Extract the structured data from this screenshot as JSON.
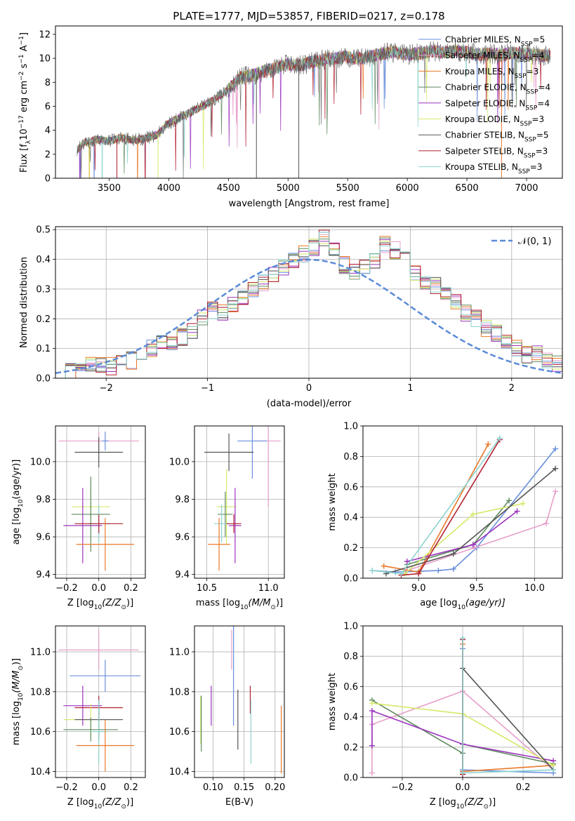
{
  "figure": {
    "title": "PLATE=1777, MJD=53857, FIBERID=0217, z=0.178"
  },
  "colors": {
    "Chabrier MILES": "#6a8fdc",
    "Salpeter MILES": "#e79fc9",
    "Kroupa MILES": "#e8792a",
    "Chabrier ELODIE": "#5f8a5f",
    "Salpeter ELODIE": "#9b34be",
    "Kroupa ELODIE": "#d7e86a",
    "Chabrier STELIB": "#555555",
    "Salpeter STELIB": "#b22030",
    "Kroupa STELIB": "#8dd4cf",
    "normal": "#5b8ad8"
  },
  "chart_data": [
    {
      "type": "line",
      "panel": "spectrum",
      "xlabel": "wavelength [Angstrom, rest frame]",
      "ylabel": "Flux [f",
      "ylabel_sub": "λ",
      "ylabel_rest": "10",
      "ylabel_exp": "−17",
      "ylabel_units": " erg cm",
      "ylabel_exp2": "−2",
      "ylabel_s": " s",
      "ylabel_exp3": "−1",
      "ylabel_a": " A",
      "ylabel_exp4": "−1",
      "ylabel_end": "]",
      "xlim": [
        3050,
        7300
      ],
      "ylim": [
        0,
        12.7
      ],
      "xticks": [
        3500,
        4000,
        4500,
        5000,
        5500,
        6000,
        6500,
        7000
      ],
      "yticks": [
        0,
        2,
        4,
        6,
        8,
        10,
        12
      ],
      "legend_position": "right",
      "legend": [
        {
          "name": "Chabrier MILES",
          "n": "5"
        },
        {
          "name": "Salpeter MILES",
          "n": "4"
        },
        {
          "name": "Kroupa MILES",
          "n": "3"
        },
        {
          "name": "Chabrier ELODIE",
          "n": "4"
        },
        {
          "name": "Salpeter ELODIE",
          "n": "4"
        },
        {
          "name": "Kroupa ELODIE",
          "n": "3"
        },
        {
          "name": "Chabrier STELIB",
          "n": "5"
        },
        {
          "name": "Salpeter STELIB",
          "n": "3"
        },
        {
          "name": "Kroupa STELIB",
          "n": "3"
        }
      ],
      "series_data": {
        "x": [
          3230,
          3300,
          3400,
          3500,
          3600,
          3700,
          3800,
          3900,
          4000,
          4100,
          4200,
          4300,
          4400,
          4500,
          4600,
          4700,
          4800,
          4900,
          5000,
          5100,
          5200,
          5300,
          5400,
          5500,
          5600,
          5700,
          5800,
          5900,
          6000,
          6100,
          6200,
          6300,
          6400,
          6500,
          6600,
          6700,
          6800,
          6900,
          7000,
          7100,
          7200
        ],
        "y": [
          2.4,
          3.0,
          3.2,
          3.1,
          3.4,
          3.2,
          3.3,
          3.6,
          4.6,
          5.1,
          5.6,
          6.1,
          6.7,
          7.4,
          8.4,
          8.6,
          8.9,
          9.2,
          9.5,
          9.4,
          9.7,
          9.9,
          10.0,
          10.1,
          10.0,
          10.2,
          10.4,
          10.5,
          10.3,
          10.4,
          10.6,
          10.5,
          10.6,
          10.5,
          10.3,
          10.4,
          10.3,
          10.5,
          10.4,
          10.2,
          10.3
        ]
      }
    },
    {
      "type": "histogram",
      "panel": "residuals",
      "xlabel": "(data-model)/error",
      "ylabel": "Normed distribution",
      "xlim": [
        -2.5,
        2.5
      ],
      "ylim": [
        0,
        0.51
      ],
      "xticks": [
        -2,
        -1,
        0,
        1,
        2
      ],
      "yticks": [
        0.0,
        0.1,
        0.2,
        0.3,
        0.4,
        0.5
      ],
      "grid": true,
      "legend_position": "top-right",
      "normal_label": "𝒩(0, 1)",
      "bin_width": 0.1,
      "bin_start": -2.5,
      "values": [
        0.02,
        0.02,
        0.03,
        0.05,
        0.04,
        0.04,
        0.05,
        0.06,
        0.09,
        0.1,
        0.12,
        0.12,
        0.14,
        0.16,
        0.2,
        0.23,
        0.22,
        0.25,
        0.27,
        0.3,
        0.32,
        0.35,
        0.37,
        0.4,
        0.42,
        0.44,
        0.47,
        0.43,
        0.38,
        0.36,
        0.37,
        0.4,
        0.45,
        0.43,
        0.4,
        0.35,
        0.32,
        0.31,
        0.28,
        0.26,
        0.22,
        0.2,
        0.17,
        0.15,
        0.12,
        0.1,
        0.08,
        0.08,
        0.06,
        0.05,
        0.05,
        0.04,
        0.03,
        0.03,
        0.04
      ]
    },
    {
      "type": "scatter",
      "panel": "age-vs-Z",
      "xlabel": "Z [log",
      "xlabel_sub": "10",
      "xlabel_rest": "(Z/Z",
      "xlabel_sub2": "⊙",
      "xlabel_end": ")]",
      "ylabel": "age  [log",
      "ylabel_sub": "10",
      "ylabel_rest": "(age/yr)]",
      "xlim": [
        -0.27,
        0.29
      ],
      "ylim": [
        9.38,
        10.19
      ],
      "xticks": [
        -0.2,
        0.0,
        0.2
      ],
      "yticks": [
        9.4,
        9.6,
        9.8,
        10.0
      ],
      "grid": true,
      "points": [
        {
          "model": "Salpeter MILES",
          "x": 0.0,
          "y": 10.11,
          "xerr": 0.25,
          "yerr": 0.05
        },
        {
          "model": "Chabrier STELIB",
          "x": 0.0,
          "y": 10.05,
          "xerr": 0.15,
          "yerr": 0.08
        },
        {
          "model": "Chabrier MILES",
          "x": 0.04,
          "y": 10.11,
          "xerr": 0.02,
          "yerr": 0.05
        },
        {
          "model": "Kroupa ELODIE",
          "x": -0.05,
          "y": 9.76,
          "xerr": 0.12,
          "yerr": 0.1
        },
        {
          "model": "Chabrier ELODIE",
          "x": -0.05,
          "y": 9.72,
          "xerr": 0.12,
          "yerr": 0.2
        },
        {
          "model": "Salpeter ELODIE",
          "x": -0.1,
          "y": 9.66,
          "xerr": 0.12,
          "yerr": 0.2
        },
        {
          "model": "Kroupa STELIB",
          "x": 0.0,
          "y": 9.67,
          "xerr": 0.07,
          "yerr": 0.1
        },
        {
          "model": "Salpeter STELIB",
          "x": 0.0,
          "y": 9.67,
          "xerr": 0.15,
          "yerr": 0.05
        },
        {
          "model": "Kroupa MILES",
          "x": 0.04,
          "y": 9.56,
          "xerr": 0.18,
          "yerr": 0.14
        }
      ]
    },
    {
      "type": "scatter",
      "panel": "age-vs-mass",
      "xlabel": "mass [log",
      "xlabel_sub": "10",
      "xlabel_rest": "(M/M",
      "xlabel_sub2": "⊙",
      "xlabel_end": ")]",
      "xlim": [
        10.4,
        11.13
      ],
      "ylim": [
        9.38,
        10.19
      ],
      "xticks": [
        10.5,
        11.0
      ],
      "yticks": [
        9.4,
        9.6,
        9.8,
        10.0
      ],
      "grid": true,
      "points": [
        {
          "model": "Salpeter MILES",
          "x": 11.0,
          "y": 10.11,
          "xerr": 0.1,
          "yerr": 0.35
        },
        {
          "model": "Chabrier MILES",
          "x": 10.87,
          "y": 10.11,
          "xerr": 0.12,
          "yerr": 0.2
        },
        {
          "model": "Chabrier STELIB",
          "x": 10.68,
          "y": 10.05,
          "xerr": 0.2,
          "yerr": 0.1
        },
        {
          "model": "Kroupa ELODIE",
          "x": 10.66,
          "y": 9.76,
          "xerr": 0.08,
          "yerr": 0.2
        },
        {
          "model": "Chabrier ELODIE",
          "x": 10.65,
          "y": 9.72,
          "xerr": 0.06,
          "yerr": 0.12
        },
        {
          "model": "Salpeter ELODIE",
          "x": 10.73,
          "y": 9.66,
          "xerr": 0.05,
          "yerr": 0.2
        },
        {
          "model": "Kroupa STELIB",
          "x": 10.62,
          "y": 9.67,
          "xerr": 0.06,
          "yerr": 0.1
        },
        {
          "model": "Salpeter STELIB",
          "x": 10.72,
          "y": 9.67,
          "xerr": 0.06,
          "yerr": 0.05
        },
        {
          "model": "Kroupa MILES",
          "x": 10.6,
          "y": 9.56,
          "xerr": 0.09,
          "yerr": 0.14
        }
      ]
    },
    {
      "type": "line",
      "panel": "mass-weight-vs-age",
      "xlabel": "age  [log",
      "xlabel_sub": "10",
      "xlabel_rest": "(age/yr)]",
      "ylabel": "mass weight",
      "xlim": [
        8.52,
        10.24
      ],
      "ylim": [
        0,
        1.0
      ],
      "xticks": [
        9.0,
        9.5,
        10.0
      ],
      "yticks": [
        0.0,
        0.2,
        0.4,
        0.6,
        0.8,
        1.0
      ],
      "grid": true,
      "series": [
        {
          "model": "Chabrier MILES",
          "x": [
            8.6,
            8.8,
            9.17,
            9.3,
            9.5,
            10.18
          ],
          "y": [
            0.05,
            0.04,
            0.05,
            0.06,
            0.2,
            0.85
          ]
        },
        {
          "model": "Salpeter MILES",
          "x": [
            8.9,
            9.48,
            10.1,
            10.18
          ],
          "y": [
            0.05,
            0.2,
            0.36,
            0.57
          ]
        },
        {
          "model": "Kroupa MILES",
          "x": [
            8.7,
            9.0,
            9.6
          ],
          "y": [
            0.08,
            0.04,
            0.88
          ]
        },
        {
          "model": "Chabrier ELODIE",
          "x": [
            8.9,
            9.47,
            9.78
          ],
          "y": [
            0.09,
            0.22,
            0.51
          ]
        },
        {
          "model": "Salpeter ELODIE",
          "x": [
            8.9,
            9.47,
            9.85
          ],
          "y": [
            0.11,
            0.22,
            0.44
          ]
        },
        {
          "model": "Kroupa ELODIE",
          "x": [
            8.88,
            9.47,
            9.9
          ],
          "y": [
            0.03,
            0.42,
            0.49
          ]
        },
        {
          "model": "Chabrier STELIB",
          "x": [
            8.72,
            9.3,
            10.18
          ],
          "y": [
            0.03,
            0.16,
            0.72
          ]
        },
        {
          "model": "Salpeter STELIB",
          "x": [
            8.85,
            9.0,
            9.7
          ],
          "y": [
            0.02,
            0.03,
            0.91
          ]
        },
        {
          "model": "Kroupa STELIB",
          "x": [
            8.6,
            8.85,
            9.7
          ],
          "y": [
            0.05,
            0.03,
            0.92
          ]
        }
      ]
    },
    {
      "type": "scatter",
      "panel": "mass-vs-Z",
      "xlabel": "Z [log",
      "xlabel_sub": "10",
      "xlabel_rest": "(Z/Z",
      "xlabel_sub2": "⊙",
      "xlabel_end": ")]",
      "ylabel": "mass [log",
      "ylabel_sub": "10",
      "ylabel_rest": "(M/M",
      "ylabel_sub2": "⊙",
      "ylabel_end": ")]",
      "xlim": [
        -0.27,
        0.29
      ],
      "ylim": [
        10.37,
        11.13
      ],
      "xticks": [
        -0.2,
        0.0,
        0.2
      ],
      "yticks": [
        10.4,
        10.6,
        10.8,
        11.0
      ],
      "grid": true,
      "points": [
        {
          "model": "Salpeter MILES",
          "x": 0.0,
          "y": 11.01,
          "xerr": 0.25,
          "yerr": 0.1
        },
        {
          "model": "Chabrier MILES",
          "x": 0.04,
          "y": 10.88,
          "xerr": 0.22,
          "yerr": 0.08
        },
        {
          "model": "Salpeter ELODIE",
          "x": -0.1,
          "y": 10.73,
          "xerr": 0.12,
          "yerr": 0.1
        },
        {
          "model": "Salpeter STELIB",
          "x": 0.0,
          "y": 10.72,
          "xerr": 0.15,
          "yerr": 0.06
        },
        {
          "model": "Kroupa ELODIE",
          "x": -0.05,
          "y": 10.66,
          "xerr": 0.17,
          "yerr": 0.08
        },
        {
          "model": "Chabrier STELIB",
          "x": 0.0,
          "y": 10.66,
          "xerr": 0.15,
          "yerr": 0.1
        },
        {
          "model": "Chabrier ELODIE",
          "x": -0.05,
          "y": 10.61,
          "xerr": 0.17,
          "yerr": 0.06
        },
        {
          "model": "Kroupa STELIB",
          "x": 0.0,
          "y": 10.6,
          "xerr": 0.05,
          "yerr": 0.16
        },
        {
          "model": "Kroupa MILES",
          "x": 0.04,
          "y": 10.53,
          "xerr": 0.18,
          "yerr": 0.13
        }
      ]
    },
    {
      "type": "scatter",
      "panel": "mass-vs-ebv",
      "xlabel": "E(B-V)",
      "xlim": [
        0.07,
        0.215
      ],
      "ylim": [
        10.37,
        11.13
      ],
      "xticks": [
        0.1,
        0.15,
        0.2
      ],
      "yticks": [
        10.4,
        10.6,
        10.8,
        11.0
      ],
      "grid": true,
      "points": [
        {
          "model": "Salpeter MILES",
          "x": 0.13,
          "y": 11.01,
          "yerr": 0.1
        },
        {
          "model": "Chabrier MILES",
          "x": 0.133,
          "y": 10.88,
          "yerr": 0.25
        },
        {
          "model": "Salpeter ELODIE",
          "x": 0.097,
          "y": 10.73,
          "yerr": 0.1
        },
        {
          "model": "Salpeter STELIB",
          "x": 0.16,
          "y": 10.76,
          "yerr": 0.07
        },
        {
          "model": "Kroupa ELODIE",
          "x": 0.08,
          "y": 10.66,
          "yerr": 0.12
        },
        {
          "model": "Chabrier STELIB",
          "x": 0.14,
          "y": 10.66,
          "yerr": 0.15
        },
        {
          "model": "Chabrier ELODIE",
          "x": 0.081,
          "y": 10.64,
          "yerr": 0.14
        },
        {
          "model": "Kroupa STELIB",
          "x": 0.161,
          "y": 10.6,
          "yerr": 0.16
        },
        {
          "model": "Kroupa MILES",
          "x": 0.21,
          "y": 10.56,
          "yerr": 0.17
        }
      ]
    },
    {
      "type": "line",
      "panel": "mass-weight-vs-Z",
      "xlabel": "Z [log",
      "xlabel_sub": "10",
      "xlabel_rest": "(Z/Z",
      "xlabel_sub2": "⊙",
      "xlabel_end": ")]",
      "ylabel": "mass weight",
      "xlim": [
        -0.33,
        0.33
      ],
      "ylim": [
        0,
        1.0
      ],
      "xticks": [
        -0.2,
        0.0,
        0.2
      ],
      "yticks": [
        0.0,
        0.2,
        0.4,
        0.6,
        0.8,
        1.0
      ],
      "grid": true,
      "series": [
        {
          "model": "Chabrier MILES",
          "x": [
            0.0,
            0.0,
            0.3
          ],
          "y": [
            0.85,
            0.05,
            0.03
          ]
        },
        {
          "model": "Salpeter MILES",
          "x": [
            -0.3,
            -0.3,
            0.0,
            0.3
          ],
          "y": [
            0.03,
            0.35,
            0.57,
            0.05
          ]
        },
        {
          "model": "Kroupa MILES",
          "x": [
            0.0,
            0.0,
            0.3
          ],
          "y": [
            0.88,
            0.04,
            0.08
          ]
        },
        {
          "model": "Chabrier ELODIE",
          "x": [
            -0.3,
            0.0,
            0.0,
            0.3
          ],
          "y": [
            0.51,
            0.16,
            0.22,
            0.09
          ]
        },
        {
          "model": "Salpeter ELODIE",
          "x": [
            -0.3,
            -0.3,
            0.0,
            0.3
          ],
          "y": [
            0.21,
            0.44,
            0.22,
            0.11
          ]
        },
        {
          "model": "Kroupa ELODIE",
          "x": [
            -0.3,
            0.0,
            0.3
          ],
          "y": [
            0.49,
            0.42,
            0.08
          ]
        },
        {
          "model": "Chabrier STELIB",
          "x": [
            0.0,
            0.0,
            0.3
          ],
          "y": [
            0.03,
            0.72,
            0.05
          ]
        },
        {
          "model": "Salpeter STELIB",
          "x": [
            0.0,
            0.0,
            0.0
          ],
          "y": [
            0.91,
            0.02,
            0.03
          ]
        },
        {
          "model": "Kroupa STELIB",
          "x": [
            0.0,
            0.0,
            0.3
          ],
          "y": [
            0.92,
            0.03,
            0.05
          ]
        }
      ]
    }
  ]
}
